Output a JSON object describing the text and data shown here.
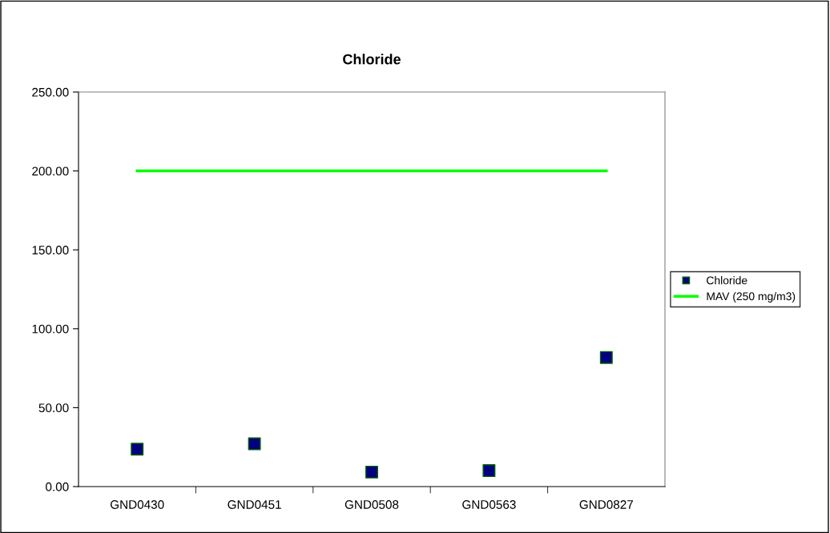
{
  "chart_data": {
    "type": "scatter",
    "title": "Chloride",
    "categories": [
      "GND0430",
      "GND0451",
      "GND0508",
      "GND0563",
      "GND0827"
    ],
    "series": [
      {
        "name": "Chloride",
        "color": "#000080",
        "marker": "square",
        "values": [
          23.7,
          27.1,
          9.2,
          10.1,
          81.8
        ]
      },
      {
        "name": "MAV (250 mg/m3)",
        "type": "line",
        "color": "#00ff00",
        "marker": "none",
        "line_style": "solid",
        "values": [
          200,
          200,
          200,
          200,
          200
        ]
      }
    ],
    "ylim": [
      0,
      250
    ],
    "yticks": [
      {
        "value": 0,
        "label": "0.00"
      },
      {
        "value": 50,
        "label": "50.00"
      },
      {
        "value": 100,
        "label": "100.00"
      },
      {
        "value": 150,
        "label": "150.00"
      },
      {
        "value": 200,
        "label": "200.00"
      },
      {
        "value": 250,
        "label": "250.00"
      }
    ],
    "grid": false,
    "legend": "right"
  }
}
